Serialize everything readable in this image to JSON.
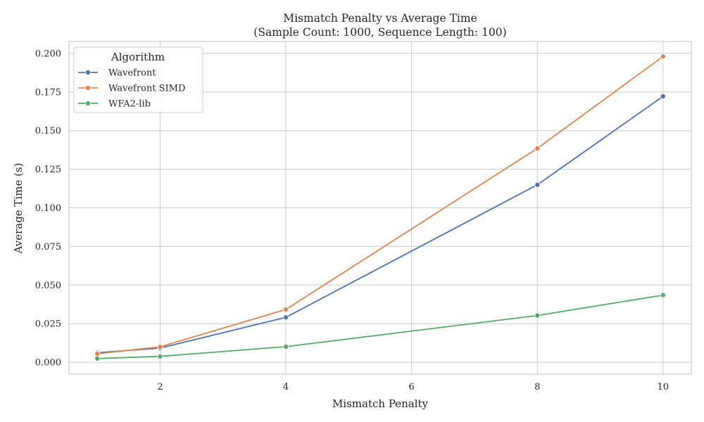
{
  "chart_data": {
    "type": "line",
    "title": "Mismatch Penalty vs Average Time",
    "subtitle": "(Sample Count: 1000, Sequence Length: 100)",
    "xlabel": "Mismatch Penalty",
    "ylabel": "Average Time (s)",
    "x": [
      1,
      2,
      4,
      8,
      10
    ],
    "xlim": [
      0.55,
      10.45
    ],
    "ylim": [
      -0.0077,
      0.2077
    ],
    "xticks": [
      2,
      4,
      6,
      8,
      10
    ],
    "xtick_labels": [
      "2",
      "4",
      "6",
      "8",
      "10"
    ],
    "yticks": [
      0.0,
      0.025,
      0.05,
      0.075,
      0.1,
      0.125,
      0.15,
      0.175,
      0.2
    ],
    "ytick_labels": [
      "0.000",
      "0.025",
      "0.050",
      "0.075",
      "0.100",
      "0.125",
      "0.150",
      "0.175",
      "0.200"
    ],
    "grid": true,
    "legend": {
      "title": "Algorithm",
      "placement": "top-left"
    },
    "series": [
      {
        "name": "Wavefront",
        "color": "#4c72b0",
        "values": [
          0.0062,
          0.0092,
          0.0291,
          0.1149,
          0.1722
        ]
      },
      {
        "name": "Wavefront SIMD",
        "color": "#dd8452",
        "values": [
          0.0055,
          0.01,
          0.0342,
          0.1385,
          0.198
        ]
      },
      {
        "name": "WFA2-lib",
        "color": "#55a868",
        "values": [
          0.0024,
          0.0038,
          0.0101,
          0.0303,
          0.0435
        ]
      }
    ]
  }
}
